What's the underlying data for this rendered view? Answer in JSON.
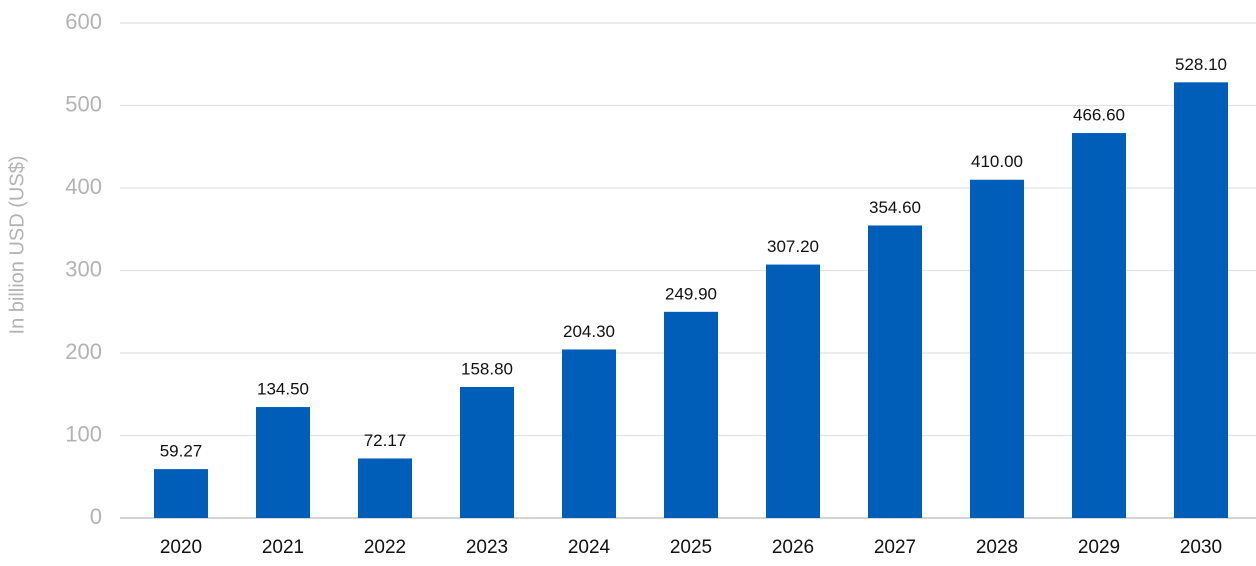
{
  "chart_data": {
    "type": "bar",
    "y_label": "In billion USD (US$)",
    "categories": [
      "2020",
      "2021",
      "2022",
      "2023",
      "2024",
      "2025",
      "2026",
      "2027",
      "2028",
      "2029",
      "2030"
    ],
    "values": [
      59.27,
      134.5,
      72.17,
      158.8,
      204.3,
      249.9,
      307.2,
      354.6,
      410.0,
      466.6,
      528.1
    ],
    "value_labels": [
      "59.27",
      "134.50",
      "72.17",
      "158.80",
      "204.30",
      "249.90",
      "307.20",
      "354.60",
      "410.00",
      "466.60",
      "528.10"
    ],
    "color": "#005eb8",
    "ylim": [
      0,
      600
    ],
    "yticks": [
      0,
      100,
      200,
      300,
      400,
      500,
      600
    ],
    "grid": true
  }
}
